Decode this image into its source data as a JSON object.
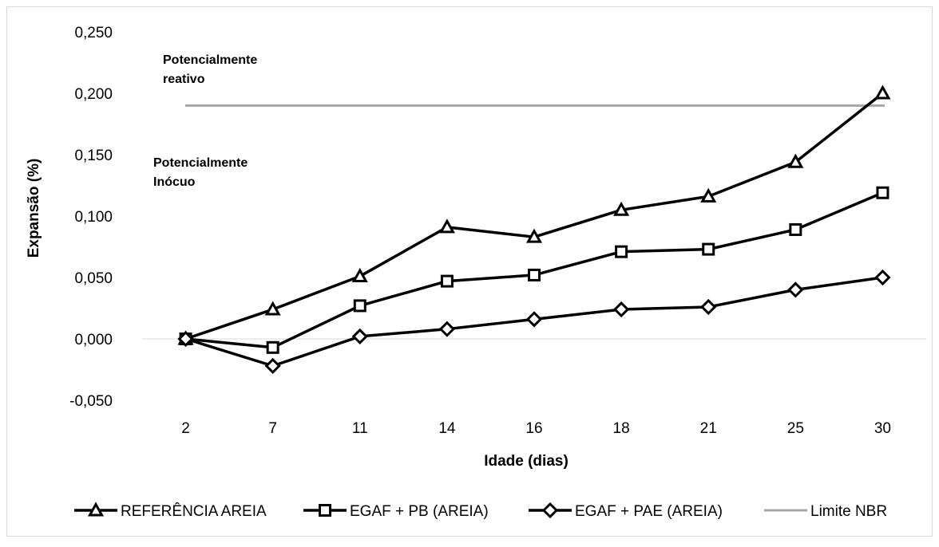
{
  "chart_data": {
    "type": "line",
    "categories": [
      "2",
      "7",
      "11",
      "14",
      "16",
      "18",
      "21",
      "25",
      "30"
    ],
    "series": [
      {
        "name": "REFERÊNCIA AREIA",
        "marker": "triangle",
        "color": "#000000",
        "values": [
          0.0,
          0.024,
          0.051,
          0.091,
          0.083,
          0.105,
          0.116,
          0.144,
          0.2
        ]
      },
      {
        "name": "EGAF + PB (AREIA)",
        "marker": "square",
        "color": "#000000",
        "values": [
          0.0,
          -0.007,
          0.027,
          0.047,
          0.052,
          0.071,
          0.073,
          0.089,
          0.119
        ]
      },
      {
        "name": "EGAF + PAE (AREIA)",
        "marker": "diamond",
        "color": "#000000",
        "values": [
          0.0,
          -0.022,
          0.002,
          0.008,
          0.016,
          0.024,
          0.026,
          0.04,
          0.05
        ]
      },
      {
        "name": "Limite NBR",
        "marker": "none",
        "color": "#A6A6A6",
        "values": [
          0.19,
          0.19,
          0.19,
          0.19,
          0.19,
          0.19,
          0.19,
          0.19,
          0.19
        ]
      }
    ],
    "xlabel": "Idade (dias)",
    "ylabel": "Expansão (%)",
    "ylim": [
      -0.05,
      0.25
    ],
    "yticks": [
      "-0,050",
      "0,000",
      "0,050",
      "0,100",
      "0,150",
      "0,200",
      "0,250"
    ],
    "grid": false,
    "legend_position": "bottom",
    "annotations": [
      {
        "lines": [
          "Potencialmente",
          "reativo"
        ]
      },
      {
        "lines": [
          "Potencialmente",
          "Inócuo"
        ]
      }
    ]
  }
}
